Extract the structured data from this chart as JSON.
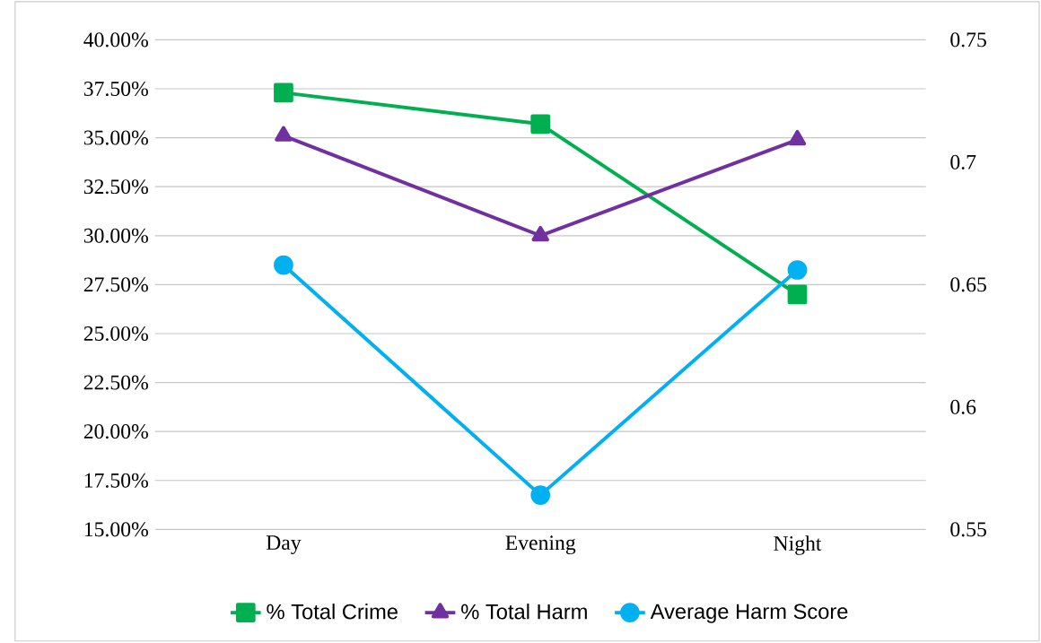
{
  "chart_data": {
    "type": "line",
    "categories": [
      "Day",
      "Evening",
      "Night"
    ],
    "series": [
      {
        "name": "% Total Crime",
        "color": "#00b050",
        "marker": "square",
        "values": [
          37.3,
          35.7,
          27.0
        ]
      },
      {
        "name": "% Total Harm",
        "color": "#7030a0",
        "marker": "triangle",
        "values": [
          35.1,
          30.0,
          34.9
        ]
      },
      {
        "name": "Average Harm Score",
        "color": "#00b0f0",
        "marker": "circle",
        "axis": "y2",
        "values": [
          0.658,
          0.564,
          0.656
        ]
      }
    ],
    "ylim": [
      15,
      40
    ],
    "yticks": [
      {
        "value": 15,
        "label": "15.00%"
      },
      {
        "value": 17.5,
        "label": "17.50%"
      },
      {
        "value": 20,
        "label": "20.00%"
      },
      {
        "value": 22.5,
        "label": "22.50%"
      },
      {
        "value": 25,
        "label": "25.00%"
      },
      {
        "value": 27.5,
        "label": "27.50%"
      },
      {
        "value": 30,
        "label": "30.00%"
      },
      {
        "value": 32.5,
        "label": "32.50%"
      },
      {
        "value": 35,
        "label": "35.00%"
      },
      {
        "value": 37.5,
        "label": "37.50%"
      },
      {
        "value": 40,
        "label": "40.00%"
      }
    ],
    "y2lim": [
      0.55,
      0.75
    ],
    "y2ticks": [
      0.55,
      0.6,
      0.65,
      0.7,
      0.75
    ],
    "grid": "y",
    "legend": "bottom",
    "line_style": "solid"
  }
}
